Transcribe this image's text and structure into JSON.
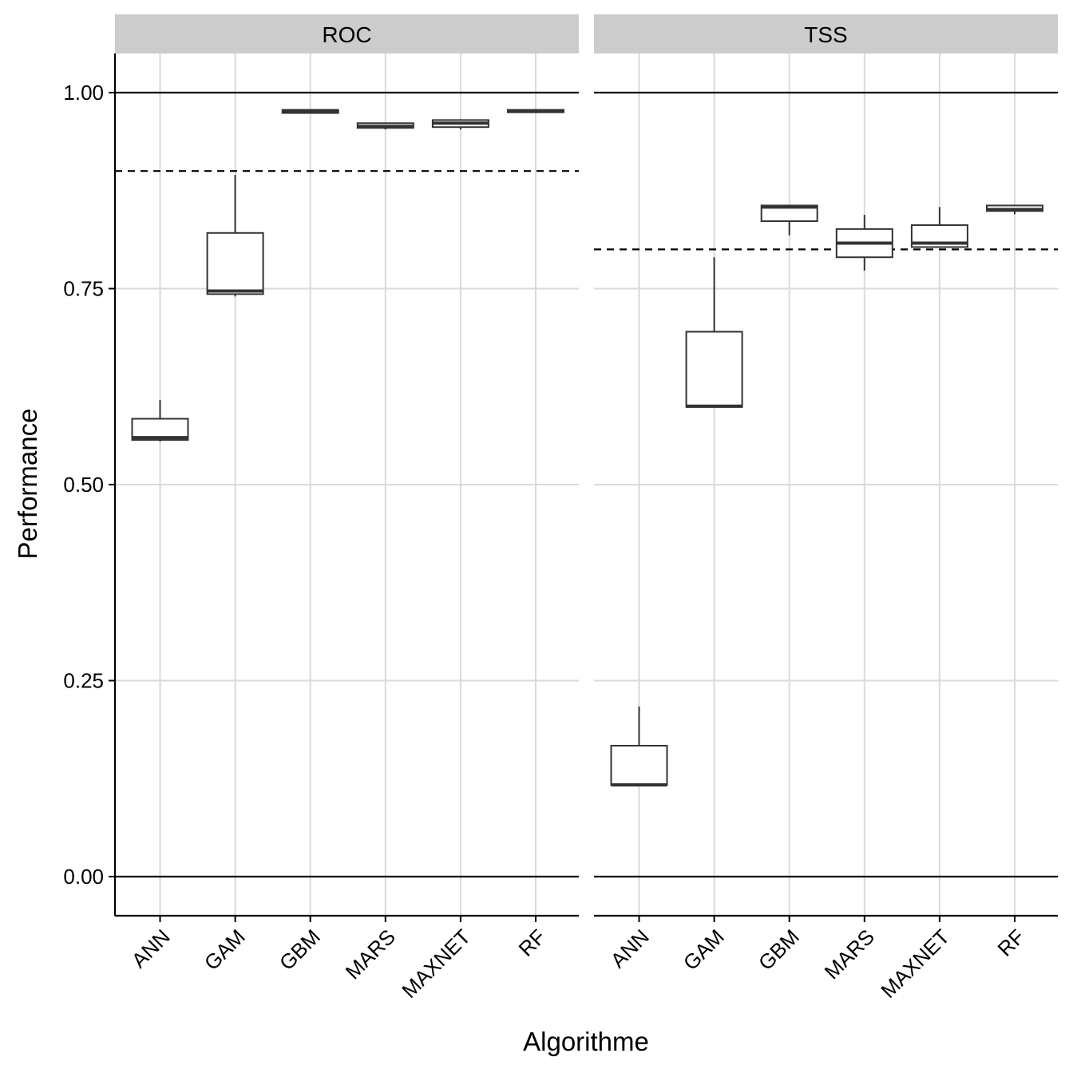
{
  "chart_data": {
    "type": "boxplot",
    "facets": [
      "ROC",
      "TSS"
    ],
    "categories": [
      "ANN",
      "GAM",
      "GBM",
      "MARS",
      "MAXNET",
      "RF"
    ],
    "xlabel": "Algorithme",
    "ylabel": "Performance",
    "ylim": [
      -0.05,
      1.05
    ],
    "y_ticks": [
      0.0,
      0.25,
      0.5,
      0.75,
      1.0
    ],
    "y_tick_labels": [
      "0.00",
      "0.25",
      "0.50",
      "0.75",
      "1.00"
    ],
    "grid": true,
    "reference_lines": {
      "solid": [
        0.0,
        1.0
      ],
      "dashed": {
        "ROC": 0.9,
        "TSS": 0.8
      }
    },
    "series": [
      {
        "facet": "ROC",
        "boxes": [
          {
            "category": "ANN",
            "low": 0.555,
            "q1": 0.557,
            "median": 0.56,
            "q3": 0.584,
            "high": 0.608
          },
          {
            "category": "GAM",
            "low": 0.74,
            "q1": 0.743,
            "median": 0.747,
            "q3": 0.821,
            "high": 0.895
          },
          {
            "category": "GBM",
            "low": 0.974,
            "q1": 0.974,
            "median": 0.976,
            "q3": 0.978,
            "high": 0.979
          },
          {
            "category": "MARS",
            "low": 0.953,
            "q1": 0.955,
            "median": 0.957,
            "q3": 0.961,
            "high": 0.962
          },
          {
            "category": "MAXNET",
            "low": 0.953,
            "q1": 0.956,
            "median": 0.961,
            "q3": 0.965,
            "high": 0.966
          },
          {
            "category": "RF",
            "low": 0.975,
            "q1": 0.975,
            "median": 0.976,
            "q3": 0.978,
            "high": 0.979
          }
        ]
      },
      {
        "facet": "TSS",
        "boxes": [
          {
            "category": "ANN",
            "low": 0.116,
            "q1": 0.117,
            "median": 0.117,
            "q3": 0.167,
            "high": 0.217
          },
          {
            "category": "GAM",
            "low": 0.598,
            "q1": 0.599,
            "median": 0.6,
            "q3": 0.695,
            "high": 0.79
          },
          {
            "category": "GBM",
            "low": 0.818,
            "q1": 0.836,
            "median": 0.854,
            "q3": 0.856,
            "high": 0.857
          },
          {
            "category": "MARS",
            "low": 0.773,
            "q1": 0.79,
            "median": 0.808,
            "q3": 0.826,
            "high": 0.844
          },
          {
            "category": "MAXNET",
            "low": 0.802,
            "q1": 0.803,
            "median": 0.808,
            "q3": 0.831,
            "high": 0.854
          },
          {
            "category": "RF",
            "low": 0.845,
            "q1": 0.849,
            "median": 0.851,
            "q3": 0.856,
            "high": 0.857
          }
        ]
      }
    ],
    "colors": {
      "strip_background": "#cccccc",
      "grid": "#dadada",
      "box_stroke": "#333333",
      "box_fill": "#ffffff",
      "axis": "#000000"
    }
  }
}
